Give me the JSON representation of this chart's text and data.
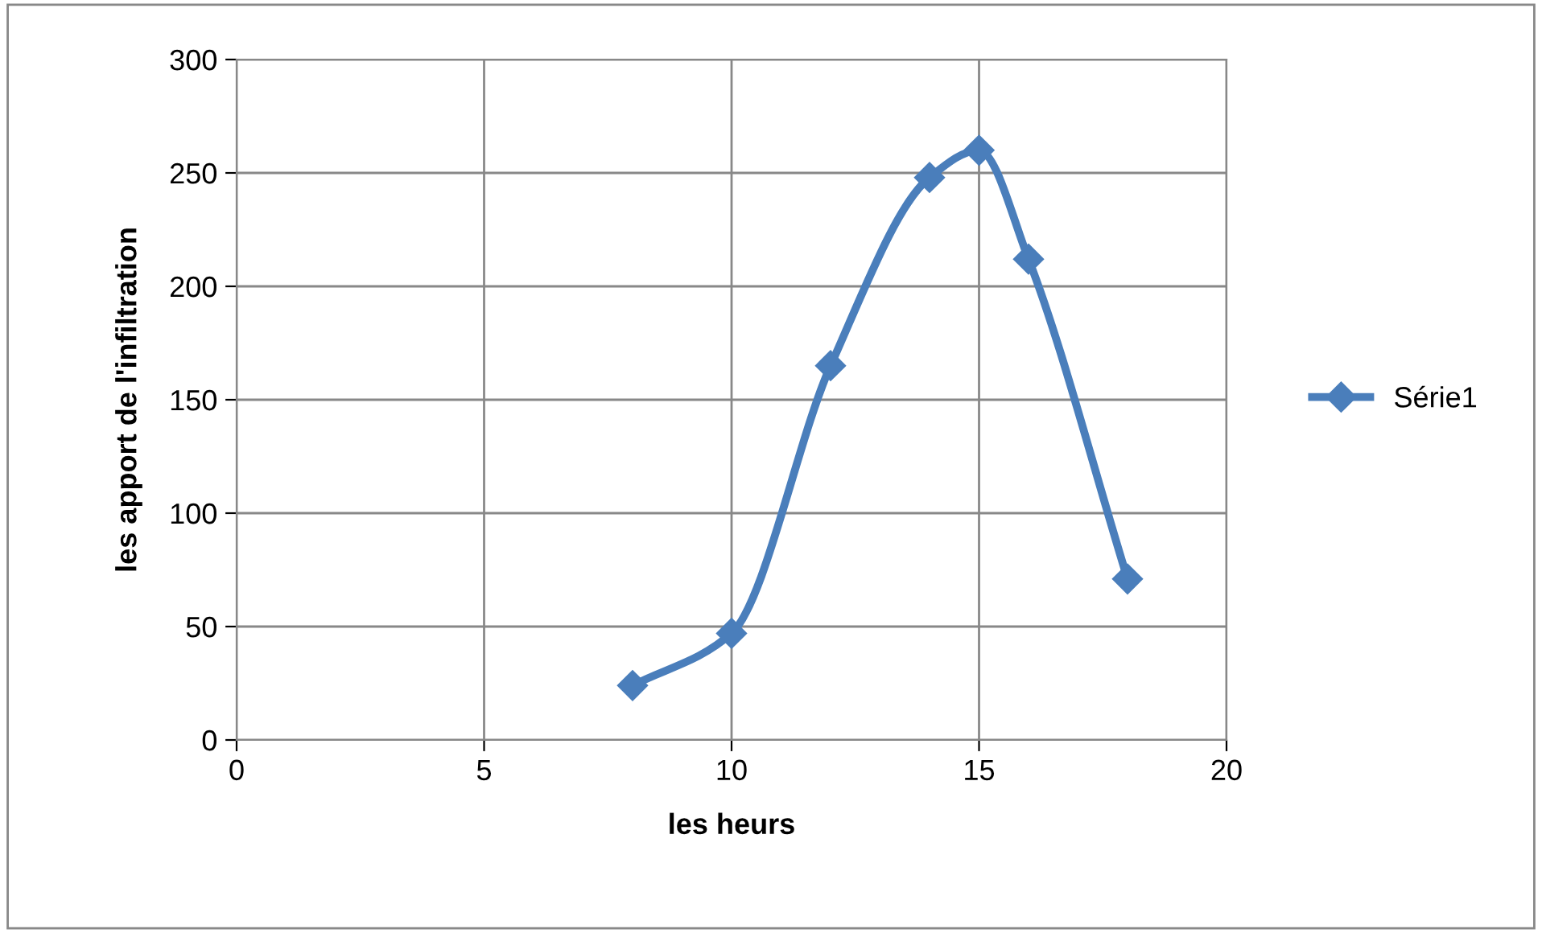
{
  "chart_data": {
    "type": "line",
    "xlabel": "les heurs",
    "ylabel": "les apport de l'infiltration",
    "x": [
      8,
      10,
      12,
      14,
      15,
      16,
      18
    ],
    "series": [
      {
        "name": "Série1",
        "color": "#4a7ebb",
        "values": [
          24,
          47,
          165,
          248,
          260,
          212,
          71
        ]
      }
    ],
    "xlim": [
      0,
      20
    ],
    "xticks": [
      0,
      5,
      10,
      15,
      20
    ],
    "ylim": [
      0,
      300
    ],
    "yticks": [
      0,
      50,
      100,
      150,
      200,
      250,
      300
    ],
    "grid": true,
    "legend": "right",
    "marker": "diamond",
    "line_style": "solid"
  }
}
